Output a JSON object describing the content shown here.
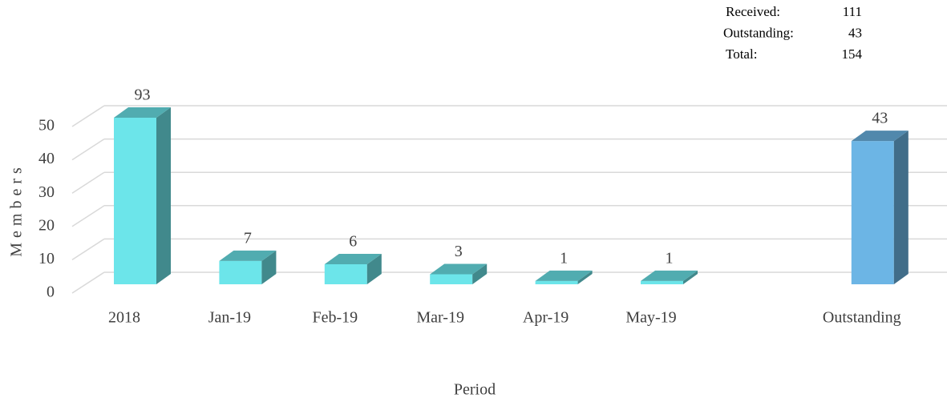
{
  "chart_data": {
    "type": "bar3d",
    "y_label": "Members",
    "x_label": "Period",
    "categories": [
      "2018",
      "Jan-19",
      "Feb-19",
      "Mar-19",
      "Apr-19",
      "May-19",
      null,
      "Outstanding"
    ],
    "values": [
      93,
      7,
      6,
      3,
      1,
      1,
      null,
      43
    ],
    "colors": [
      "#6ce5ea",
      "#6ce5ea",
      "#6ce5ea",
      "#6ce5ea",
      "#6ce5ea",
      "#6ce5ea",
      null,
      "#6cb5e5"
    ],
    "ylim": [
      0,
      50
    ],
    "yticks": [
      0,
      10,
      20,
      30,
      40,
      50
    ],
    "grid": true,
    "annotations": [
      {
        "label": "Received:",
        "value": 111
      },
      {
        "label": "Outstanding:",
        "value": 43
      },
      {
        "label": "Total:",
        "value": 154
      }
    ]
  }
}
